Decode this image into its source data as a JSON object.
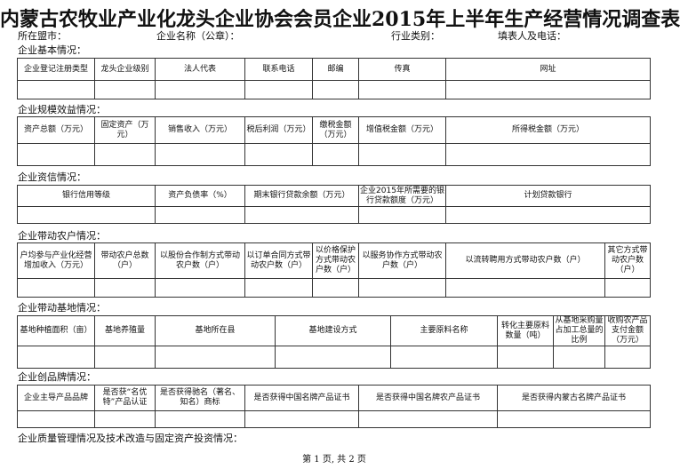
{
  "title": "内蒙古农牧业产业化龙头企业协会会员企业2015年上半年生产经营情况调查表",
  "info": {
    "league_city": "所在盟市：",
    "company_name": "企业名称（公章）：",
    "industry": "行业类别：",
    "filler": "填表人及电话："
  },
  "sections": {
    "basic": {
      "label": "企业基本情况：",
      "headers": [
        "企业登记注册类型",
        "龙头企业级别",
        "法人代表",
        "联系电话",
        "邮编",
        "传真",
        "网址"
      ]
    },
    "scale": {
      "label": "企业规模效益情况：",
      "headers": [
        "资产总额（万元）",
        "固定资产（万元）",
        "销售收入（万元）",
        "税后利润（万元）",
        "缴税金额（万元）",
        "增值税金额（万元）",
        "所得税金额（万元）"
      ]
    },
    "credit": {
      "label": "企业资信情况：",
      "headers": [
        "银行信用等级",
        "资产负债率（%）",
        "期末银行贷款余额（万元）",
        "企业2015年所需要的银行贷款额度（万元）",
        "计划贷款银行"
      ]
    },
    "farmers": {
      "label": "企业带动农户情况：",
      "headers": [
        "户均参与产业化经营增加收入（万元）",
        "带动农户总数（户）",
        "以股份合作制方式带动农户数（户）",
        "以订单合同方式带动农户数（户）",
        "以价格保护方式带动农户数（户）",
        "以服务协作方式带动农户数（户）",
        "以流转聘用方式带动农户数（户）",
        "其它方式带动农户数（户）"
      ]
    },
    "base": {
      "label": "企业带动基地情况：",
      "headers": [
        "基地种植面积（亩）",
        "基地养殖量",
        "基地所在县",
        "基地建设方式",
        "主要原料名称",
        "转化主要原料数量（吨）",
        "从基地采购量占加工总量的比例",
        "收购农产品支付金额（万元）"
      ]
    },
    "brand": {
      "label": "企业创品牌情况：",
      "headers": [
        "企业主导产品品牌",
        "是否获“名优特”产品认证",
        "是否获得驰名（著名、知名）商标",
        "是否获得中国名牌产品证书",
        "是否获得中国名牌农产品证书",
        "是否获得内蒙古名牌产品证书"
      ]
    },
    "quality": {
      "label": "企业质量管理情况及技术改造与固定资产投资情况："
    }
  },
  "footer": "第 1 页, 共 2 页"
}
